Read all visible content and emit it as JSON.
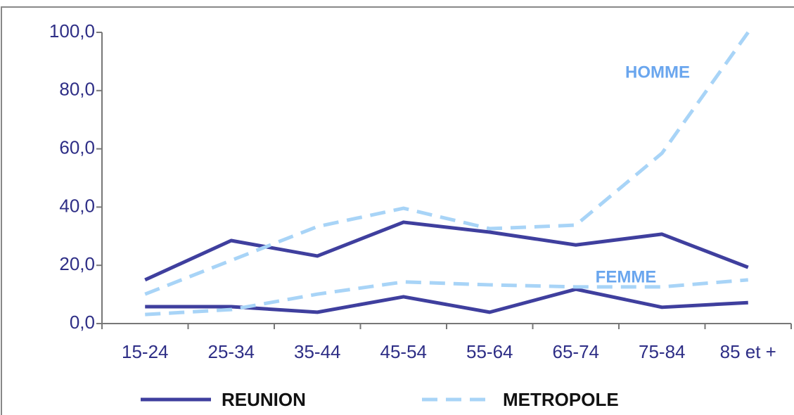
{
  "chart_data": {
    "type": "line",
    "categories": [
      "15-24",
      "25-34",
      "35-44",
      "45-54",
      "55-64",
      "65-74",
      "75-84",
      "85 et +"
    ],
    "series": [
      {
        "name": "REUNION",
        "color": "#3f3f9e",
        "dashed": false,
        "homme": [
          15.0,
          28.5,
          23.2,
          34.8,
          31.4,
          27.0,
          30.7,
          19.3
        ],
        "femme": [
          5.8,
          5.8,
          3.9,
          9.2,
          3.9,
          11.8,
          5.6,
          7.2
        ]
      },
      {
        "name": "METROPOLE",
        "color": "#a8d4f7",
        "dashed": true,
        "homme": [
          10.1,
          21.7,
          33.3,
          39.6,
          32.6,
          33.8,
          58.5,
          100.0
        ],
        "femme": [
          3.1,
          4.8,
          10.1,
          14.3,
          13.3,
          12.6,
          12.6,
          15.0
        ]
      }
    ],
    "annotations": [
      "HOMME",
      "FEMME"
    ],
    "ylim": [
      0,
      100
    ],
    "yticks": [
      {
        "value": 0,
        "label": "0,0"
      },
      {
        "value": 20,
        "label": "20,0"
      },
      {
        "value": 40,
        "label": "40,0"
      },
      {
        "value": 60,
        "label": "60,0"
      },
      {
        "value": 80,
        "label": "80,0"
      },
      {
        "value": 100,
        "label": "100,0"
      }
    ],
    "grid": false
  }
}
